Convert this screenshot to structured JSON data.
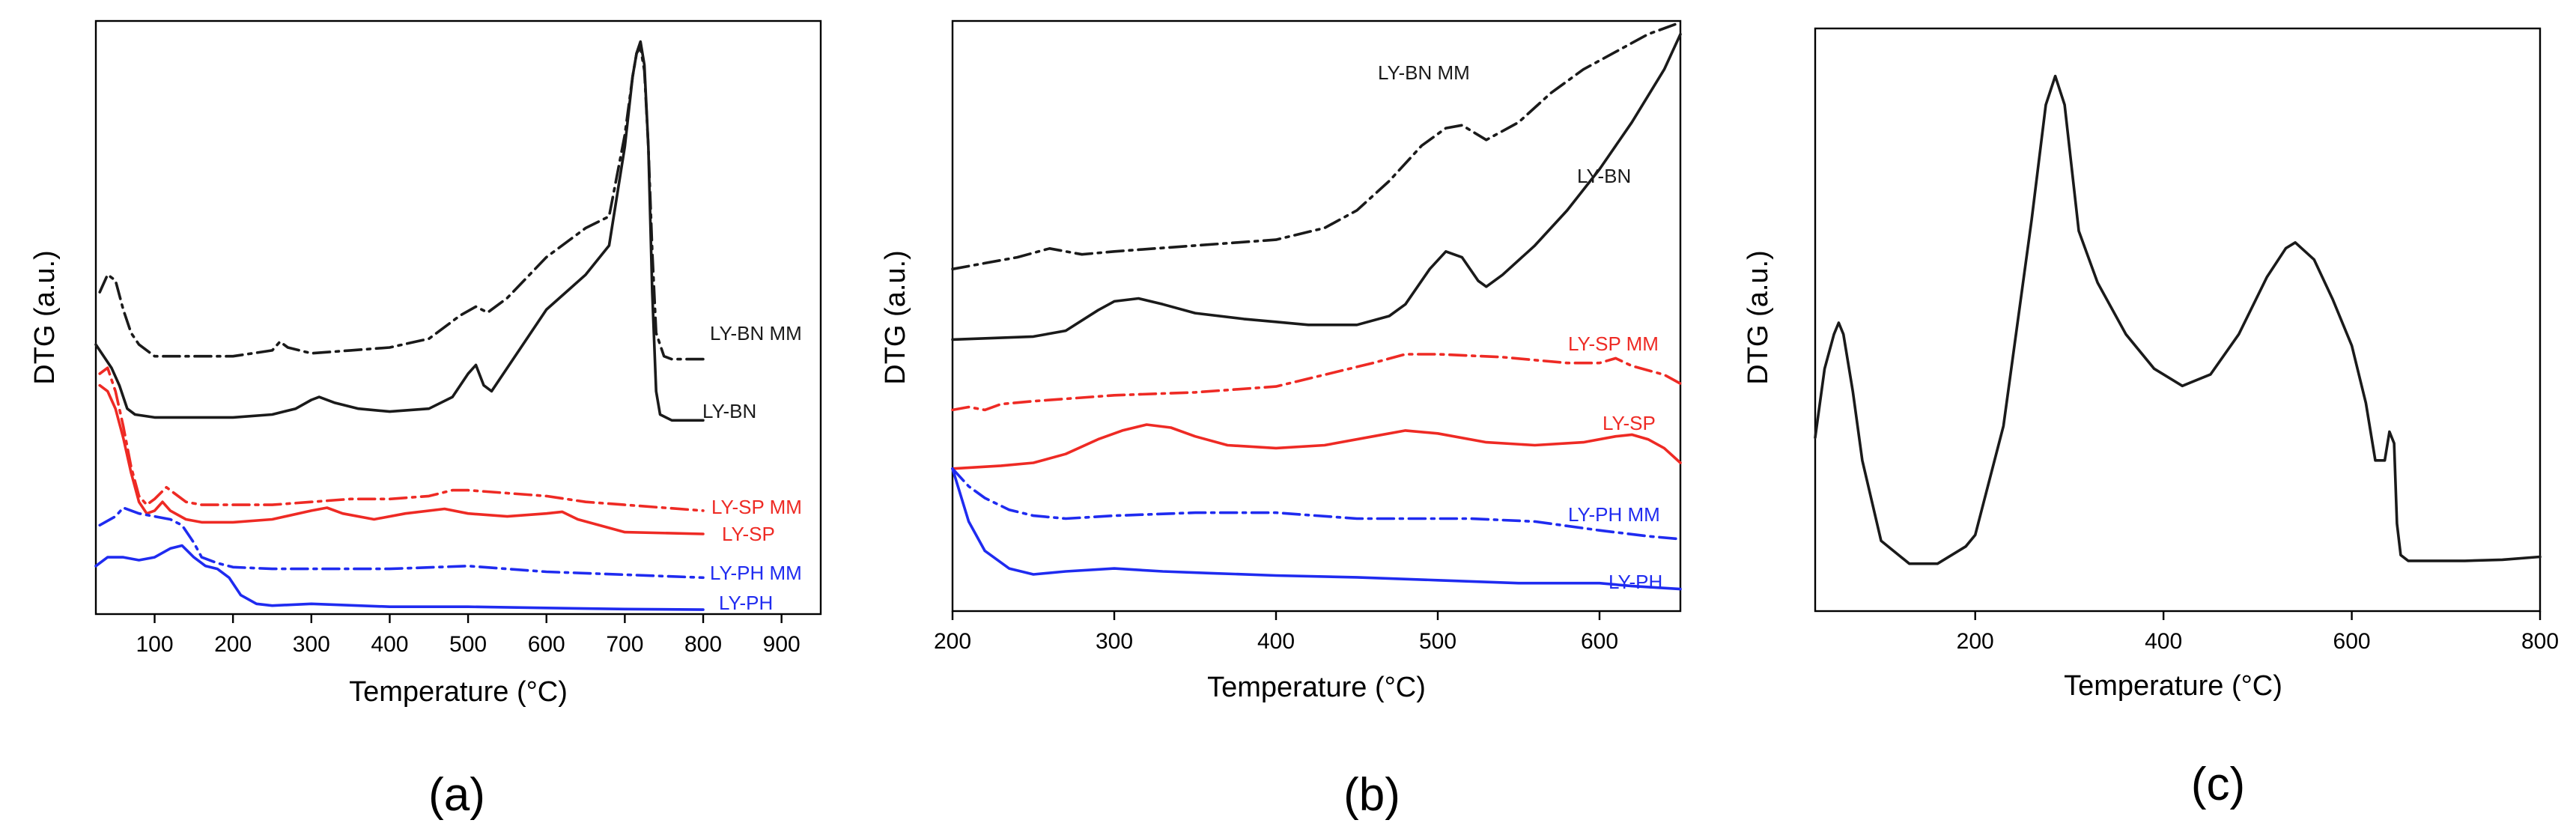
{
  "colors": {
    "black": "#1a1a1a",
    "red": "#ee2a24",
    "blue": "#1f2bf0"
  },
  "chart_data": [
    {
      "panel": "(a)",
      "type": "line",
      "title": "",
      "xlabel": "Temperature (°C)",
      "ylabel": "DTG (a.u.)",
      "xlim": [
        25,
        950
      ],
      "ylim": [
        0,
        100
      ],
      "xticks": [
        100,
        200,
        300,
        400,
        500,
        600,
        700,
        800,
        900
      ],
      "series": [
        {
          "name": "LY-BN MM",
          "color": "black",
          "dash": "dashdot",
          "x": [
            30,
            40,
            50,
            60,
            70,
            80,
            100,
            130,
            200,
            250,
            260,
            270,
            300,
            350,
            400,
            450,
            490,
            510,
            525,
            550,
            600,
            650,
            680,
            700,
            710,
            715,
            720,
            725,
            730,
            735,
            740,
            750,
            760,
            800
          ],
          "y": [
            55,
            58,
            57,
            52,
            48,
            46,
            44,
            44,
            44,
            45,
            46.5,
            45.5,
            44.5,
            45,
            45.5,
            47,
            51,
            52.5,
            51.5,
            54,
            61,
            66,
            68,
            82,
            92,
            96,
            97,
            93,
            80,
            62,
            48,
            44,
            43.5,
            43.5
          ]
        },
        {
          "name": "LY-BN",
          "color": "black",
          "dash": "solid",
          "x": [
            25,
            35,
            45,
            55,
            65,
            75,
            100,
            150,
            200,
            250,
            280,
            300,
            310,
            330,
            360,
            400,
            450,
            480,
            500,
            510,
            520,
            530,
            550,
            600,
            650,
            680,
            700,
            710,
            715,
            720,
            725,
            730,
            735,
            740,
            745,
            760,
            800
          ],
          "y": [
            46,
            44,
            42,
            39,
            35,
            34,
            33.5,
            33.5,
            33.5,
            34,
            35,
            36.5,
            37,
            36,
            35,
            34.5,
            35,
            37,
            41,
            42.5,
            39,
            38,
            42,
            52,
            58,
            63,
            80,
            92,
            96,
            98,
            94,
            80,
            55,
            38,
            34,
            33,
            33
          ]
        },
        {
          "name": "LY-SP MM",
          "color": "red",
          "dash": "dashdot",
          "x": [
            30,
            40,
            45,
            50,
            60,
            70,
            80,
            90,
            100,
            115,
            125,
            140,
            160,
            200,
            250,
            300,
            350,
            400,
            450,
            480,
            500,
            550,
            600,
            650,
            700,
            750,
            800
          ],
          "y": [
            41,
            42,
            40,
            38,
            32,
            25,
            20,
            18.5,
            19.5,
            21.5,
            20.5,
            19,
            18.5,
            18.5,
            18.5,
            19,
            19.5,
            19.5,
            20,
            21,
            21,
            20.5,
            20,
            19,
            18.5,
            18,
            17.5
          ]
        },
        {
          "name": "LY-SP",
          "color": "red",
          "dash": "solid",
          "x": [
            30,
            40,
            50,
            60,
            70,
            80,
            90,
            100,
            110,
            120,
            140,
            160,
            200,
            250,
            300,
            320,
            340,
            380,
            420,
            470,
            500,
            550,
            600,
            620,
            640,
            700,
            800
          ],
          "y": [
            39,
            38,
            35,
            30,
            24,
            19,
            17,
            17.5,
            19,
            17.5,
            16,
            15.5,
            15.5,
            16,
            17.5,
            18,
            17,
            16,
            17,
            17.8,
            17,
            16.5,
            17,
            17.3,
            16,
            13.8,
            13.5
          ]
        },
        {
          "name": "LY-PH MM",
          "color": "blue",
          "dash": "dashdot",
          "x": [
            30,
            50,
            60,
            80,
            100,
            120,
            135,
            150,
            160,
            180,
            200,
            250,
            300,
            400,
            500,
            600,
            700,
            800
          ],
          "y": [
            15,
            16.5,
            18,
            17,
            16.5,
            16,
            15,
            12,
            9.5,
            8.5,
            7.8,
            7.5,
            7.5,
            7.5,
            8,
            7,
            6.5,
            6
          ]
        },
        {
          "name": "LY-PH",
          "color": "blue",
          "dash": "solid",
          "x": [
            25,
            40,
            60,
            80,
            100,
            120,
            135,
            150,
            165,
            180,
            195,
            210,
            230,
            250,
            300,
            400,
            500,
            600,
            700,
            800
          ],
          "y": [
            8,
            9.5,
            9.5,
            9,
            9.5,
            11,
            11.5,
            9.5,
            8,
            7.5,
            6,
            3,
            1.5,
            1.2,
            1.5,
            1,
            1,
            0.8,
            0.6,
            0.5
          ]
        }
      ],
      "labels": [
        "LY-BN MM",
        "LY-BN",
        "LY-SP MM",
        "LY-SP",
        "LY-PH MM",
        "LY-PH"
      ]
    },
    {
      "panel": "(b)",
      "type": "line",
      "title": "",
      "xlabel": "Temperature (°C)",
      "ylabel": "DTG (a.u.)",
      "xlim": [
        200,
        650
      ],
      "ylim": [
        0,
        100
      ],
      "xticks": [
        200,
        300,
        400,
        500,
        600
      ],
      "series": [
        {
          "name": "LY-BN MM",
          "color": "black",
          "dash": "dashdot",
          "x": [
            200,
            220,
            240,
            260,
            280,
            300,
            350,
            400,
            430,
            450,
            470,
            490,
            505,
            515,
            530,
            550,
            570,
            590,
            610,
            630,
            650
          ],
          "y": [
            58,
            59,
            60,
            61.5,
            60.5,
            61,
            62,
            63,
            65,
            68,
            73,
            79,
            82,
            82.5,
            80,
            83,
            88,
            92,
            95,
            98,
            100
          ]
        },
        {
          "name": "LY-BN",
          "color": "black",
          "dash": "solid",
          "x": [
            200,
            250,
            270,
            290,
            300,
            315,
            330,
            350,
            380,
            400,
            420,
            450,
            470,
            480,
            495,
            505,
            515,
            525,
            530,
            540,
            560,
            580,
            600,
            620,
            640,
            650
          ],
          "y": [
            46,
            46.5,
            47.5,
            51,
            52.5,
            53,
            52,
            50.5,
            49.5,
            49,
            48.5,
            48.5,
            50,
            52,
            58,
            61,
            60,
            56,
            55,
            57,
            62,
            68,
            75,
            83,
            92,
            98
          ]
        },
        {
          "name": "LY-SP MM",
          "color": "red",
          "dash": "dashdot",
          "x": [
            200,
            210,
            220,
            230,
            250,
            300,
            350,
            400,
            430,
            460,
            480,
            500,
            540,
            580,
            600,
            610,
            620,
            640,
            650
          ],
          "y": [
            34,
            34.5,
            34,
            35,
            35.5,
            36.5,
            37,
            38,
            40,
            42,
            43.5,
            43.5,
            43,
            42,
            42,
            42.8,
            41.5,
            40,
            38.5
          ]
        },
        {
          "name": "LY-SP",
          "color": "red",
          "dash": "solid",
          "x": [
            200,
            230,
            250,
            270,
            290,
            305,
            320,
            335,
            350,
            370,
            400,
            430,
            460,
            480,
            500,
            530,
            560,
            590,
            610,
            620,
            630,
            640,
            650
          ],
          "y": [
            24,
            24.5,
            25,
            26.5,
            29,
            30.5,
            31.5,
            31,
            29.5,
            28,
            27.5,
            28,
            29.5,
            30.5,
            30,
            28.5,
            28,
            28.5,
            29.5,
            29.8,
            29,
            27.5,
            25
          ]
        },
        {
          "name": "LY-PH MM",
          "color": "blue",
          "dash": "dashdot",
          "x": [
            200,
            210,
            220,
            235,
            250,
            270,
            300,
            350,
            400,
            450,
            500,
            520,
            560,
            600,
            630,
            650
          ],
          "y": [
            24,
            21,
            19,
            17,
            16,
            15.5,
            16,
            16.5,
            16.5,
            15.5,
            15.5,
            15.5,
            15,
            13.5,
            12.5,
            12
          ]
        },
        {
          "name": "LY-PH",
          "color": "blue",
          "dash": "solid",
          "x": [
            200,
            210,
            220,
            235,
            250,
            270,
            300,
            330,
            360,
            400,
            450,
            500,
            550,
            600,
            620,
            650
          ],
          "y": [
            24,
            15,
            10,
            7,
            6,
            6.5,
            7,
            6.5,
            6.2,
            5.8,
            5.5,
            5,
            4.5,
            4.5,
            4,
            3.5
          ]
        }
      ],
      "labels": [
        "LY-BN MM",
        "LY-BN",
        "LY-SP MM",
        "LY-SP",
        "LY-PH MM",
        "LY-PH"
      ]
    },
    {
      "panel": "(c)",
      "type": "line",
      "title": "",
      "xlabel": "Temperature (°C)",
      "ylabel": "DTG (a.u.)",
      "xlim": [
        30,
        800
      ],
      "ylim": [
        0,
        100
      ],
      "xticks": [
        200,
        400,
        600,
        800
      ],
      "series": [
        {
          "name": "",
          "color": "black",
          "dash": "solid",
          "x": [
            30,
            40,
            50,
            55,
            60,
            70,
            80,
            100,
            130,
            160,
            190,
            200,
            230,
            260,
            275,
            285,
            295,
            310,
            330,
            360,
            390,
            420,
            450,
            480,
            510,
            530,
            540,
            560,
            580,
            600,
            615,
            625,
            635,
            640,
            645,
            648,
            652,
            660,
            680,
            720,
            760,
            800
          ],
          "y": [
            30,
            42,
            48,
            50,
            48,
            38,
            26,
            12,
            8,
            8,
            11,
            13,
            32,
            68,
            88,
            93,
            88,
            66,
            57,
            48,
            42,
            39,
            41,
            48,
            58,
            63,
            64,
            61,
            54,
            46,
            36,
            26,
            26,
            31,
            29,
            15,
            9.5,
            8.5,
            8.5,
            8.5,
            8.7,
            9.2
          ]
        }
      ],
      "labels": []
    }
  ]
}
